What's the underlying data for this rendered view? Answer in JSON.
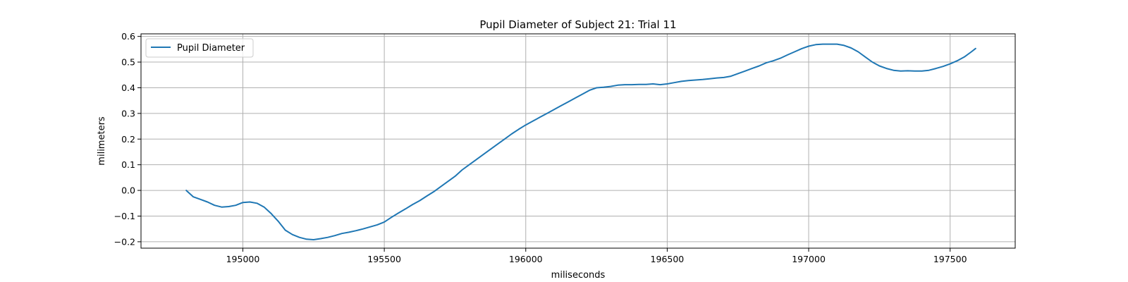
{
  "chart_data": {
    "type": "line",
    "title": "Pupil Diameter of Subject 21: Trial 11",
    "xlabel": "miliseconds",
    "ylabel": "milimeters",
    "xlim": [
      194640,
      197730
    ],
    "ylim": [
      -0.225,
      0.61
    ],
    "xticks": [
      195000,
      195500,
      196000,
      196500,
      197000,
      197500
    ],
    "yticks": [
      -0.2,
      -0.1,
      0.0,
      0.1,
      0.2,
      0.3,
      0.4,
      0.5,
      0.6
    ],
    "grid": true,
    "legend_position": "top-left",
    "series": [
      {
        "name": "Pupil Diameter",
        "color": "#1f77b4",
        "x": [
          194800,
          194825,
          194850,
          194875,
          194900,
          194925,
          194950,
          194975,
          195000,
          195025,
          195050,
          195075,
          195100,
          195125,
          195150,
          195175,
          195200,
          195225,
          195250,
          195275,
          195300,
          195325,
          195350,
          195375,
          195400,
          195425,
          195450,
          195475,
          195500,
          195525,
          195550,
          195575,
          195600,
          195625,
          195650,
          195675,
          195700,
          195725,
          195750,
          195775,
          195800,
          195825,
          195850,
          195875,
          195900,
          195925,
          195950,
          195975,
          196000,
          196025,
          196050,
          196075,
          196100,
          196125,
          196150,
          196175,
          196200,
          196225,
          196250,
          196275,
          196300,
          196325,
          196350,
          196375,
          196400,
          196425,
          196450,
          196475,
          196500,
          196525,
          196550,
          196575,
          196600,
          196625,
          196650,
          196675,
          196700,
          196725,
          196750,
          196775,
          196800,
          196825,
          196850,
          196875,
          196900,
          196925,
          196950,
          196975,
          197000,
          197025,
          197050,
          197075,
          197100,
          197125,
          197150,
          197175,
          197200,
          197225,
          197250,
          197275,
          197300,
          197325,
          197350,
          197375,
          197400,
          197425,
          197450,
          197475,
          197500,
          197525,
          197550,
          197575,
          197590
        ],
        "values": [
          0.0,
          -0.025,
          -0.035,
          -0.045,
          -0.058,
          -0.065,
          -0.063,
          -0.058,
          -0.047,
          -0.045,
          -0.05,
          -0.065,
          -0.09,
          -0.12,
          -0.155,
          -0.172,
          -0.183,
          -0.19,
          -0.192,
          -0.188,
          -0.183,
          -0.176,
          -0.168,
          -0.163,
          -0.157,
          -0.15,
          -0.142,
          -0.134,
          -0.123,
          -0.105,
          -0.088,
          -0.072,
          -0.055,
          -0.04,
          -0.022,
          -0.005,
          0.015,
          0.035,
          0.055,
          0.08,
          0.1,
          0.12,
          0.14,
          0.16,
          0.18,
          0.2,
          0.22,
          0.238,
          0.255,
          0.27,
          0.285,
          0.3,
          0.315,
          0.33,
          0.345,
          0.36,
          0.375,
          0.39,
          0.4,
          0.402,
          0.405,
          0.41,
          0.412,
          0.412,
          0.413,
          0.413,
          0.415,
          0.412,
          0.415,
          0.42,
          0.425,
          0.428,
          0.43,
          0.432,
          0.435,
          0.438,
          0.44,
          0.445,
          0.455,
          0.465,
          0.475,
          0.485,
          0.497,
          0.505,
          0.515,
          0.528,
          0.54,
          0.552,
          0.562,
          0.568,
          0.57,
          0.57,
          0.57,
          0.565,
          0.555,
          0.54,
          0.52,
          0.5,
          0.485,
          0.475,
          0.468,
          0.465,
          0.466,
          0.465,
          0.465,
          0.468,
          0.475,
          0.483,
          0.493,
          0.505,
          0.52,
          0.54,
          0.553
        ]
      }
    ]
  }
}
